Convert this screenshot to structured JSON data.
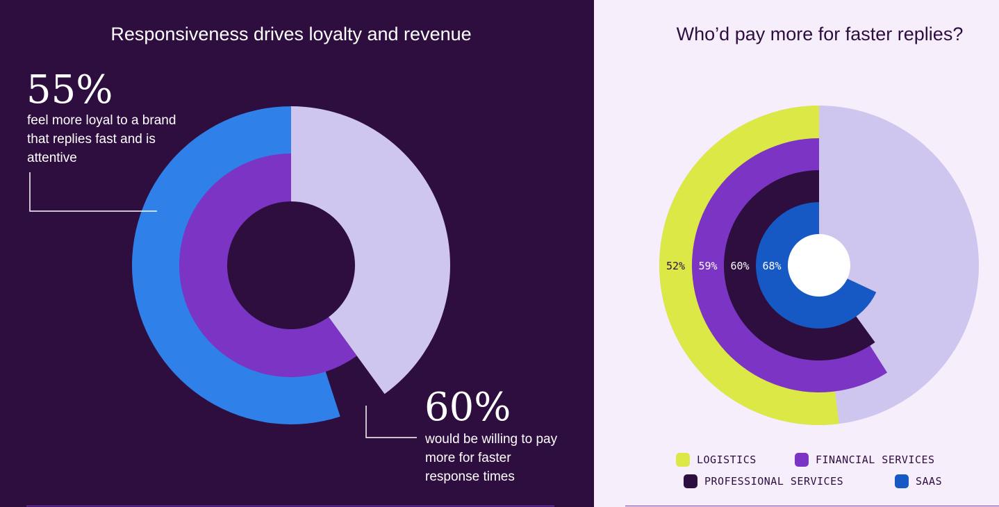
{
  "chart_data": [
    {
      "type": "pie",
      "title": "Responsiveness drives loyalty and revenue",
      "rings": [
        {
          "name": "feel more loyal to a brand that replies fast and is attentive",
          "value": 55,
          "remainder": 45
        },
        {
          "name": "would be willing to pay more for faster response times",
          "value": 60,
          "remainder": 40
        }
      ],
      "annotations": [
        {
          "value_label": "55%",
          "text": "feel more loyal to a brand that replies fast and is attentive"
        },
        {
          "value_label": "60%",
          "text": "would be willing to pay more for faster response times"
        }
      ]
    },
    {
      "type": "pie",
      "title": "Who’d pay more for faster replies?",
      "rings": [
        {
          "name": "LOGISTICS",
          "value": 52,
          "label": "52%"
        },
        {
          "name": "FINANCIAL SERVICES",
          "value": 59,
          "label": "59%"
        },
        {
          "name": "PROFESSIONAL SERVICES",
          "value": 60,
          "label": "60%"
        },
        {
          "name": "SAAS",
          "value": 68,
          "label": "68%"
        }
      ],
      "legend": [
        "LOGISTICS",
        "FINANCIAL SERVICES",
        "PROFESSIONAL SERVICES",
        "SAAS"
      ]
    }
  ],
  "colors": {
    "left_background": "#2e0d3f",
    "right_background": "#f6eefb",
    "remainder": "#cfc6ef",
    "blue": "#2f80e8",
    "purple": "#7b34c4",
    "logistics": "#dbe845",
    "financial_services": "#7b34c4",
    "professional_services": "#2e0d3f",
    "saas": "#1658c4",
    "white": "#ffffff"
  }
}
